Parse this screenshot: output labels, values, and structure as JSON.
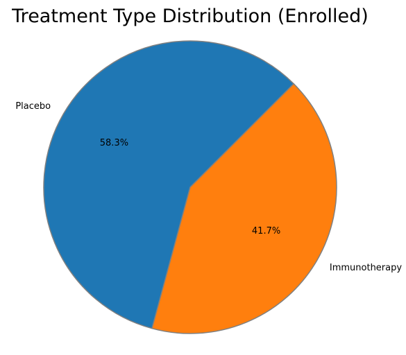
{
  "chart_data": {
    "type": "pie",
    "title": "Treatment Type Distribution (Enrolled)",
    "categories": [
      "Placebo",
      "Immunotherapy"
    ],
    "values": [
      58.3,
      41.7
    ],
    "percent_labels": [
      "58.3%",
      "41.7%"
    ],
    "colors": [
      "#1f77b4",
      "#ff7f0e"
    ],
    "edge_color": "#808080",
    "start_angle_deg": 45,
    "direction": "counterclockwise",
    "legend": "none"
  }
}
